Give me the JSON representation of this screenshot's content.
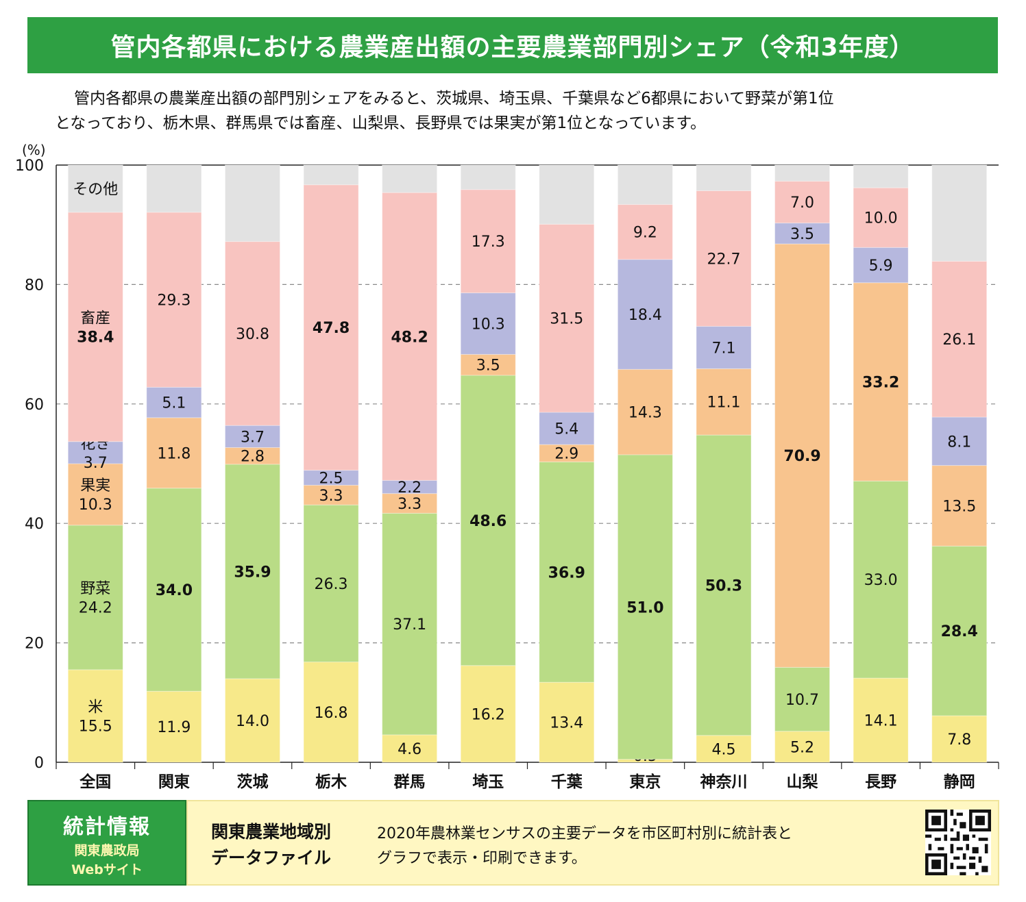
{
  "title": "管内各都県における農業産出額の主要農業部門別シェア（令和3年度）",
  "intro": {
    "line1": "管内各都県の農業産出額の部門別シェアをみると、茨城県、埼玉県、千葉県など6都県において野菜が第1位",
    "line2": "となっており、栃木県、群馬県では畜産、山梨県、長野県では果実が第1位となっています。"
  },
  "colors": {
    "rice": "#f7e98a",
    "vegetables": "#b9dc86",
    "fruit": "#f8c48e",
    "flowers": "#b6b8de",
    "livestock": "#f8c4c0",
    "other": "#e2e2e2"
  },
  "chart_data": {
    "type": "bar",
    "stacked": true,
    "y_unit_label": "(%)",
    "ylim": [
      0,
      100
    ],
    "yticks": [
      "0",
      "20",
      "40",
      "60",
      "80",
      "100"
    ],
    "categories": [
      "全国",
      "関東",
      "茨城",
      "栃木",
      "群馬",
      "埼玉",
      "千葉",
      "東京",
      "神奈川",
      "山梨",
      "長野",
      "静岡"
    ],
    "series": [
      {
        "name": "米",
        "key": "rice",
        "values": [
          15.5,
          11.9,
          14.0,
          16.8,
          4.6,
          16.2,
          13.4,
          0.5,
          4.5,
          5.2,
          14.1,
          7.8
        ],
        "labels": [
          "15.5",
          "11.9",
          "14.0",
          "16.8",
          "4.6",
          "16.2",
          "13.4",
          "0.5",
          "4.5",
          "5.2",
          "14.1",
          "7.8"
        ]
      },
      {
        "name": "野菜",
        "key": "vegetables",
        "values": [
          24.2,
          34.0,
          35.9,
          26.3,
          37.1,
          48.6,
          36.9,
          51.0,
          50.3,
          10.7,
          33.0,
          28.4
        ],
        "labels": [
          "24.2",
          "34.0",
          "35.9",
          "26.3",
          "37.1",
          "48.6",
          "36.9",
          "51.0",
          "50.3",
          "10.7",
          "33.0",
          "28.4"
        ]
      },
      {
        "name": "果実",
        "key": "fruit",
        "values": [
          10.3,
          11.8,
          2.8,
          3.3,
          3.3,
          3.5,
          2.9,
          14.3,
          11.1,
          70.9,
          33.2,
          13.5
        ],
        "labels": [
          "10.3",
          "11.8",
          "2.8",
          "3.3",
          "3.3",
          "3.5",
          "2.9",
          "14.3",
          "11.1",
          "70.9",
          "33.2",
          "13.5"
        ]
      },
      {
        "name": "花き",
        "key": "flowers",
        "values": [
          3.7,
          5.1,
          3.7,
          2.5,
          2.2,
          10.3,
          5.4,
          18.4,
          7.1,
          3.5,
          5.9,
          8.1
        ],
        "labels": [
          "3.7",
          "5.1",
          "3.7",
          "2.5",
          "2.2",
          "10.3",
          "5.4",
          "18.4",
          "7.1",
          "3.5",
          "5.9",
          "8.1"
        ]
      },
      {
        "name": "畜産",
        "key": "livestock",
        "values": [
          38.4,
          29.3,
          30.8,
          47.8,
          48.2,
          17.3,
          31.5,
          9.2,
          22.7,
          7.0,
          10.0,
          26.1
        ],
        "labels": [
          "38.4",
          "29.3",
          "30.8",
          "47.8",
          "48.2",
          "17.3",
          "31.5",
          "9.2",
          "22.7",
          "7.0",
          "10.0",
          "26.1"
        ]
      },
      {
        "name": "その他",
        "key": "other",
        "values": [
          7.9,
          7.9,
          12.8,
          3.3,
          4.6,
          4.1,
          9.9,
          6.6,
          4.3,
          2.7,
          3.8,
          16.1
        ],
        "labels": []
      }
    ],
    "bold": {
      "vegetables": [
        1,
        2,
        5,
        6,
        7,
        8,
        11
      ],
      "livestock": [
        0,
        3,
        4
      ],
      "fruit": [
        9,
        10
      ]
    },
    "grid": true
  },
  "footer": {
    "badge_title": "統計情報",
    "badge_sub1": "関東農政局",
    "badge_sub2": "Webサイト",
    "name_line1": "関東農業地域別",
    "name_line2": "データファイル",
    "desc_line1": "2020年農林業センサスの主要データを市区町村別に統計表と",
    "desc_line2": "グラフで表示・印刷できます。"
  }
}
